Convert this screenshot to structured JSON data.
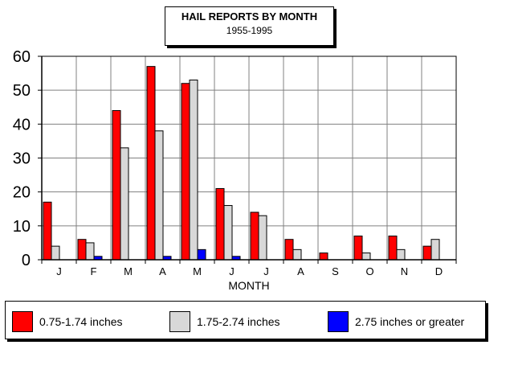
{
  "chart_data": {
    "type": "bar",
    "title": "HAIL REPORTS BY MONTH",
    "subtitle": "1955-1995",
    "xlabel": "MONTH",
    "ylabel": "",
    "ylim": [
      0,
      60
    ],
    "yticks": [
      0,
      10,
      20,
      30,
      40,
      50,
      60
    ],
    "grid": true,
    "legend_position": "bottom",
    "categories": [
      "J",
      "F",
      "M",
      "A",
      "M",
      "J",
      "J",
      "A",
      "S",
      "O",
      "N",
      "D"
    ],
    "series": [
      {
        "name": "0.75-1.74 inches",
        "color": "#ff0000",
        "values": [
          17,
          6,
          44,
          57,
          52,
          21,
          14,
          6,
          2,
          7,
          7,
          4
        ]
      },
      {
        "name": "1.75-2.74 inches",
        "color": "#d8d8d8",
        "values": [
          4,
          5,
          33,
          38,
          53,
          16,
          13,
          3,
          0,
          2,
          3,
          6
        ]
      },
      {
        "name": "2.75 inches or greater",
        "color": "#0000ff",
        "values": [
          0,
          1,
          0,
          1,
          3,
          1,
          0,
          0,
          0,
          0,
          0,
          0
        ]
      }
    ]
  }
}
